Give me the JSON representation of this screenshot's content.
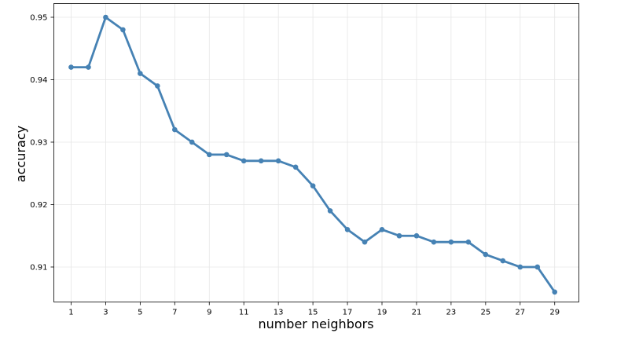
{
  "chart_data": {
    "type": "line",
    "title": "",
    "xlabel": "number neighbors",
    "ylabel": "accuracy",
    "xlim": [
      0,
      30.4
    ],
    "ylim": [
      0.9044,
      0.9522
    ],
    "xticks": [
      1,
      3,
      5,
      7,
      9,
      11,
      13,
      15,
      17,
      19,
      21,
      23,
      25,
      27,
      29
    ],
    "yticks": [
      0.91,
      0.92,
      0.93,
      0.94,
      0.95
    ],
    "ytick_labels": [
      "0.91",
      "0.92",
      "0.93",
      "0.94",
      "0.95"
    ],
    "grid": true,
    "color": "#4682b4",
    "series": [
      {
        "x": [
          1,
          2,
          3,
          4,
          5,
          6,
          7,
          8,
          9,
          10,
          11,
          12,
          13,
          14,
          15,
          16,
          17,
          18,
          19,
          20,
          21,
          22,
          23,
          24,
          25,
          26,
          27,
          28,
          29
        ],
        "values": [
          0.942,
          0.942,
          0.95,
          0.948,
          0.941,
          0.939,
          0.932,
          0.93,
          0.928,
          0.928,
          0.927,
          0.927,
          0.927,
          0.926,
          0.923,
          0.919,
          0.916,
          0.914,
          0.916,
          0.915,
          0.915,
          0.914,
          0.914,
          0.914,
          0.912,
          0.911,
          0.91,
          0.91,
          0.906
        ]
      }
    ]
  }
}
